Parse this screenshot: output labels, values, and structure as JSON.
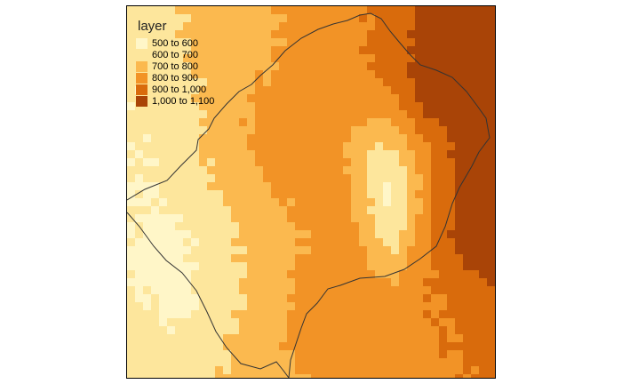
{
  "legend": {
    "title": "layer",
    "items": [
      {
        "label": "500 to 600",
        "color": "#fff6c8"
      },
      {
        "label": "600 to 700",
        "color": "#fde69c"
      },
      {
        "label": "700 to 800",
        "color": "#fbb94f"
      },
      {
        "label": "800 to 900",
        "color": "#f29326"
      },
      {
        "label": "900 to 1,000",
        "color": "#d96b0c"
      },
      {
        "label": "1,000 to 1,100",
        "color": "#a94407"
      }
    ]
  },
  "map": {
    "type": "raster-elevation-map",
    "boundary_outline": "country-border"
  }
}
